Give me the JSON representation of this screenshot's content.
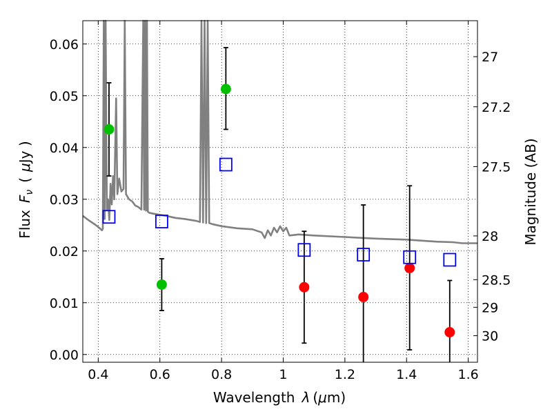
{
  "chart_data": {
    "type": "scatter",
    "xlabel_text": "Wavelength",
    "xlabel_symbol": "λ",
    "xlabel_unit_open": "(",
    "xlabel_unit_mu": "μ",
    "xlabel_unit_rest": "m)",
    "ylabel_text": "Flux",
    "ylabel_symbol": "F",
    "ylabel_subscript": "ν",
    "ylabel_unit_open": "(",
    "ylabel_unit_mu": "μ",
    "ylabel_unit_rest": "Jy )",
    "y2label": "Magnitude (AB)",
    "xlim": [
      0.35,
      1.63
    ],
    "ylim": [
      -0.0015,
      0.0645
    ],
    "grid": true,
    "xticks": [
      0.4,
      0.6,
      0.8,
      1.0,
      1.2,
      1.4,
      1.6
    ],
    "xtick_labels": [
      "0.4",
      "0.6",
      "0.8",
      "1",
      "1.2",
      "1.4",
      "1.6"
    ],
    "yticks": [
      0.0,
      0.01,
      0.02,
      0.03,
      0.04,
      0.05,
      0.06
    ],
    "ytick_labels": [
      "0.00",
      "0.01",
      "0.02",
      "0.03",
      "0.04",
      "0.05",
      "0.06"
    ],
    "mag_ticks": [
      {
        "mag": 27,
        "label": "27"
      },
      {
        "mag": 27.2,
        "label": "27.2"
      },
      {
        "mag": 27.5,
        "label": "27.5"
      },
      {
        "mag": 28,
        "label": "28"
      },
      {
        "mag": 28.5,
        "label": "28.5"
      },
      {
        "mag": 29,
        "label": "29"
      },
      {
        "mag": 30,
        "label": "30"
      }
    ],
    "colors": {
      "green": "#00c000",
      "red": "#ff0000",
      "model_box": "#0000ff",
      "sed": "#808080",
      "errorbar": "#000000"
    },
    "series": [
      {
        "marker": "circle",
        "color": "green",
        "points": [
          {
            "x": 0.435,
            "y": 0.0435,
            "yerr_low": 0.0345,
            "yerr_high": 0.0525
          },
          {
            "x": 0.606,
            "y": 0.0135,
            "yerr_low": 0.0085,
            "yerr_high": 0.0185
          },
          {
            "x": 0.814,
            "y": 0.0513,
            "yerr_low": 0.0435,
            "yerr_high": 0.0593
          }
        ]
      },
      {
        "marker": "circle",
        "color": "red",
        "points": [
          {
            "x": 1.068,
            "y": 0.013,
            "yerr_low": 0.0022,
            "yerr_high": 0.0238
          },
          {
            "x": 1.26,
            "y": 0.0111,
            "yerr_low": -0.002,
            "yerr_high": 0.0289
          },
          {
            "x": 1.41,
            "y": 0.0167,
            "yerr_low": 0.0009,
            "yerr_high": 0.0326
          },
          {
            "x": 1.54,
            "y": 0.0043,
            "yerr_low": -0.002,
            "yerr_high": 0.0143
          }
        ]
      },
      {
        "marker": "open-square",
        "color": "model_box",
        "points": [
          {
            "x": 0.435,
            "y": 0.0266
          },
          {
            "x": 0.606,
            "y": 0.0257
          },
          {
            "x": 0.814,
            "y": 0.0367
          },
          {
            "x": 1.068,
            "y": 0.0202
          },
          {
            "x": 1.26,
            "y": 0.0193
          },
          {
            "x": 1.41,
            "y": 0.0188
          },
          {
            "x": 1.54,
            "y": 0.0183
          }
        ]
      }
    ],
    "sed_curve": [
      [
        0.35,
        0.0268
      ],
      [
        0.37,
        0.0259
      ],
      [
        0.39,
        0.0251
      ],
      [
        0.405,
        0.0244
      ],
      [
        0.412,
        0.024
      ],
      [
        0.415,
        0.0243
      ],
      [
        0.418,
        0.0645
      ],
      [
        0.421,
        0.0262
      ],
      [
        0.424,
        0.0645
      ],
      [
        0.428,
        0.028
      ],
      [
        0.432,
        0.03
      ],
      [
        0.436,
        0.026
      ],
      [
        0.44,
        0.033
      ],
      [
        0.444,
        0.029
      ],
      [
        0.448,
        0.0345
      ],
      [
        0.452,
        0.03
      ],
      [
        0.458,
        0.0495
      ],
      [
        0.462,
        0.031
      ],
      [
        0.468,
        0.034
      ],
      [
        0.475,
        0.0315
      ],
      [
        0.482,
        0.032
      ],
      [
        0.486,
        0.0645
      ],
      [
        0.49,
        0.031
      ],
      [
        0.5,
        0.03
      ],
      [
        0.51,
        0.0296
      ],
      [
        0.52,
        0.0288
      ],
      [
        0.53,
        0.0285
      ],
      [
        0.54,
        0.028
      ],
      [
        0.546,
        0.0645
      ],
      [
        0.549,
        0.028
      ],
      [
        0.552,
        0.0645
      ],
      [
        0.555,
        0.0278
      ],
      [
        0.558,
        0.0645
      ],
      [
        0.561,
        0.0276
      ],
      [
        0.565,
        0.0274
      ],
      [
        0.58,
        0.0272
      ],
      [
        0.6,
        0.027
      ],
      [
        0.62,
        0.0268
      ],
      [
        0.65,
        0.0264
      ],
      [
        0.68,
        0.0262
      ],
      [
        0.7,
        0.026
      ],
      [
        0.72,
        0.0258
      ],
      [
        0.73,
        0.0256
      ],
      [
        0.735,
        0.0645
      ],
      [
        0.74,
        0.0255
      ],
      [
        0.745,
        0.0645
      ],
      [
        0.75,
        0.0254
      ],
      [
        0.755,
        0.0645
      ],
      [
        0.76,
        0.0254
      ],
      [
        0.77,
        0.0252
      ],
      [
        0.8,
        0.0248
      ],
      [
        0.85,
        0.0244
      ],
      [
        0.9,
        0.0242
      ],
      [
        0.93,
        0.0236
      ],
      [
        0.94,
        0.0225
      ],
      [
        0.95,
        0.024
      ],
      [
        0.96,
        0.023
      ],
      [
        0.97,
        0.0245
      ],
      [
        0.98,
        0.0236
      ],
      [
        0.99,
        0.0248
      ],
      [
        1.0,
        0.0238
      ],
      [
        1.01,
        0.0245
      ],
      [
        1.02,
        0.023
      ],
      [
        1.05,
        0.0232
      ],
      [
        1.1,
        0.023
      ],
      [
        1.2,
        0.0227
      ],
      [
        1.3,
        0.0224
      ],
      [
        1.4,
        0.0222
      ],
      [
        1.45,
        0.022
      ],
      [
        1.5,
        0.0218
      ],
      [
        1.55,
        0.0217
      ],
      [
        1.58,
        0.0215
      ],
      [
        1.63,
        0.0215
      ]
    ]
  }
}
